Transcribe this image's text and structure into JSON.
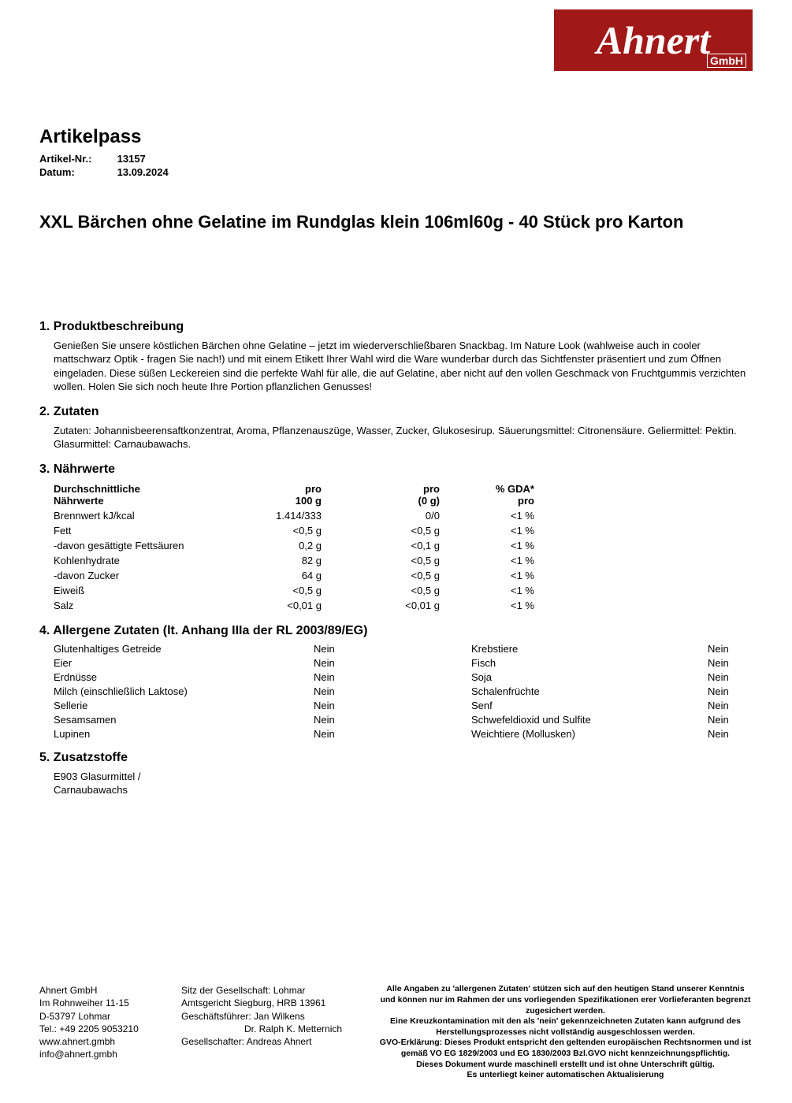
{
  "logo": {
    "name": "Ahnert",
    "suffix": "GmbH",
    "bg_color": "#a01818",
    "text_color": "#ffffff"
  },
  "header": {
    "page_title": "Artikelpass",
    "article_label": "Artikel-Nr.:",
    "article_value": "13157",
    "date_label": "Datum:",
    "date_value": "13.09.2024"
  },
  "product_title": "XXL Bärchen ohne Gelatine im Rundglas klein 106ml60g - 40 Stück pro Karton",
  "sections": {
    "s1": {
      "heading": "1. Produktbeschreibung",
      "body": "Genießen Sie unsere köstlichen Bärchen ohne Gelatine – jetzt im wiederverschließbaren Snackbag. Im Nature Look (wahlweise auch in cooler mattschwarz Optik - fragen Sie nach!) und mit einem Etikett Ihrer Wahl wird die Ware wunderbar durch das Sichtfenster präsentiert und zum Öffnen eingeladen. Diese süßen Leckereien sind die perfekte Wahl für alle, die auf Gelatine, aber nicht auf den vollen Geschmack von Fruchtgummis verzichten wollen. Holen Sie sich noch heute Ihre Portion pflanzlichen Genusses!"
    },
    "s2": {
      "heading": "2. Zutaten",
      "body": "Zutaten: Johannisbeerensaftkonzentrat, Aroma, Pflanzenauszüge, Wasser, Zucker, Glukosesirup. Säuerungsmittel: Citronensäure. Geliermittel: Pektin. Glasurmittel: Carnaubawachs."
    },
    "s3": {
      "heading": "3. Nährwerte",
      "th_name1": "Durchschnittliche",
      "th_name2": "Nährwerte",
      "th_c1a": "pro",
      "th_c1b": "100 g",
      "th_c2a": "pro",
      "th_c2b": "(0 g)",
      "th_c3a": "% GDA*",
      "th_c3b": "pro",
      "rows": [
        {
          "n": "Brennwert kJ/kcal",
          "a": "1.414/333",
          "b": "0/0",
          "c": "<1 %"
        },
        {
          "n": "Fett",
          "a": "<0,5 g",
          "b": "<0,5 g",
          "c": "<1 %"
        },
        {
          "n": "-davon gesättigte Fettsäuren",
          "a": "0,2 g",
          "b": "<0,1 g",
          "c": "<1 %"
        },
        {
          "n": "Kohlenhydrate",
          "a": "82 g",
          "b": "<0,5 g",
          "c": "<1 %"
        },
        {
          "n": "-davon Zucker",
          "a": "64 g",
          "b": "<0,5 g",
          "c": "<1 %"
        },
        {
          "n": "Eiweiß",
          "a": "<0,5 g",
          "b": "<0,5 g",
          "c": "<1 %"
        },
        {
          "n": "Salz",
          "a": "<0,01 g",
          "b": "<0,01 g",
          "c": "<1 %"
        }
      ]
    },
    "s4": {
      "heading": "4. Allergene Zutaten (lt. Anhang IIIa der RL 2003/89/EG)",
      "rows": [
        {
          "l": "Glutenhaltiges Getreide",
          "lv": "Nein",
          "r": "Krebstiere",
          "rv": "Nein"
        },
        {
          "l": "Eier",
          "lv": "Nein",
          "r": "Fisch",
          "rv": "Nein"
        },
        {
          "l": "Erdnüsse",
          "lv": "Nein",
          "r": "Soja",
          "rv": "Nein"
        },
        {
          "l": "Milch (einschließlich Laktose)",
          "lv": "Nein",
          "r": "Schalenfrüchte",
          "rv": "Nein"
        },
        {
          "l": "Sellerie",
          "lv": "Nein",
          "r": "Senf",
          "rv": "Nein"
        },
        {
          "l": "Sesamsamen",
          "lv": "Nein",
          "r": "Schwefeldioxid und Sulfite",
          "rv": "Nein"
        },
        {
          "l": "Lupinen",
          "lv": "Nein",
          "r": "Weichtiere (Mollusken)",
          "rv": "Nein"
        }
      ]
    },
    "s5": {
      "heading": "5. Zusatzstoffe",
      "body": "E903 Glasurmittel / Carnaubawachs"
    }
  },
  "footer": {
    "col1": [
      "Ahnert GmbH",
      "Im Rohnweiher 11-15",
      "D-53797 Lohmar",
      "Tel.: +49 2205 9053210",
      "www.ahnert.gmbh",
      "info@ahnert.gmbh"
    ],
    "col2": [
      "Sitz der Gesellschaft: Lohmar",
      "Amtsgericht Siegburg, HRB 13961",
      "Geschäftsführer: Jan Wilkens",
      "                        Dr. Ralph K. Metternich",
      "Gesellschafter: Andreas Ahnert"
    ],
    "col3": [
      "Alle Angaben zu 'allergenen Zutaten' stützen sich auf den heutigen Stand unserer Kenntnis und können nur im Rahmen der uns vorliegenden Spezifikationen erer Vorlieferanten begrenzt zugesichert werden.",
      "Eine Kreuzkontamination mit den als 'nein' gekennzeichneten Zutaten kann aufgrund des Herstellungsprozesses nicht vollständig ausgeschlossen werden.",
      "GVO-Erklärung: Dieses Produkt entspricht den geltenden europäischen Rechtsnormen und ist gemäß VO EG 1829/2003 und EG 1830/2003 Bzl.GVO nicht kennzeichnungspflichtig.",
      "Dieses Dokument wurde maschinell erstellt und ist ohne Unterschrift gültig.",
      "Es unterliegt keiner automatischen Aktualisierung"
    ]
  }
}
